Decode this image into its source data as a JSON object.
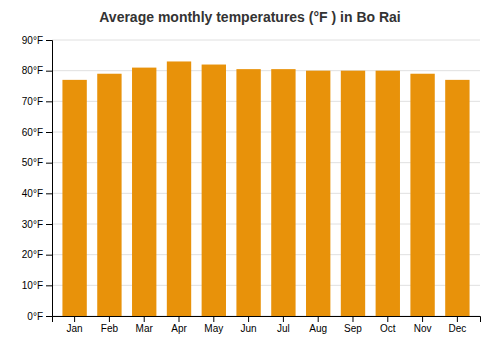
{
  "chart_data": {
    "type": "bar",
    "title": "Average monthly temperatures (°F ) in Bo Rai",
    "categories": [
      "Jan",
      "Feb",
      "Mar",
      "Apr",
      "May",
      "Jun",
      "Jul",
      "Aug",
      "Sep",
      "Oct",
      "Nov",
      "Dec"
    ],
    "values": [
      77,
      79,
      81,
      83,
      82,
      80.5,
      80.5,
      80,
      80,
      80,
      79,
      77
    ],
    "color": "#E8920A",
    "ylim": [
      0,
      90
    ],
    "yticks": [
      {
        "value": 0,
        "label": "0°F"
      },
      {
        "value": 10,
        "label": "10°F"
      },
      {
        "value": 20,
        "label": "20°F"
      },
      {
        "value": 30,
        "label": "30°F"
      },
      {
        "value": 40,
        "label": "40°F"
      },
      {
        "value": 50,
        "label": "50°F"
      },
      {
        "value": 60,
        "label": "60°F"
      },
      {
        "value": 70,
        "label": "70°F"
      },
      {
        "value": 80,
        "label": "80°F"
      },
      {
        "value": 90,
        "label": "90°F"
      }
    ],
    "grid": true
  }
}
